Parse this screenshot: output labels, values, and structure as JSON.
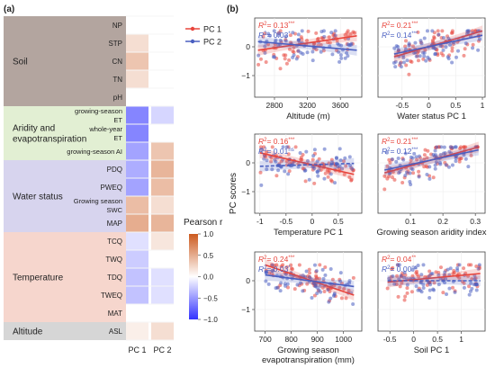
{
  "panel_labels": [
    "(a)",
    "(b)"
  ],
  "colors": {
    "pc1": "#e8453c",
    "pc2": "#4a5fc1",
    "neg": "#3333ff",
    "zero": "#ffffff",
    "pos": "#cc5a1e"
  },
  "chart_data": [
    {
      "type": "heatmap",
      "title": "",
      "columns": [
        "PC 1",
        "PC 2"
      ],
      "groups": [
        {
          "name": "Soil",
          "color": "#b3a59f",
          "rows": [
            "NP",
            "STP",
            "CN",
            "TN",
            "pH"
          ]
        },
        {
          "name": "Aridity and evapotranspiration",
          "name_lines": [
            "Aridity and",
            "evapotranspiration"
          ],
          "color": "#e2efd3",
          "rows": [
            "growing-season ET",
            "whole-year ET",
            "growing-season AI"
          ],
          "row_lines": [
            [
              "growing-season",
              "ET"
            ],
            [
              "whole-year",
              "ET"
            ],
            [
              "growing-season AI"
            ]
          ]
        },
        {
          "name": "Water status",
          "color": "#d7d4ee",
          "rows": [
            "PDQ",
            "PWEQ",
            "Growing season SWC",
            "MAP"
          ],
          "row_lines": [
            [
              "PDQ"
            ],
            [
              "PWEQ"
            ],
            [
              "Growing season",
              "SWC"
            ],
            [
              "MAP"
            ]
          ]
        },
        {
          "name": "Temperature",
          "color": "#f6d6cd",
          "rows": [
            "TCQ",
            "TWQ",
            "TDQ",
            "TWEQ",
            "MAT"
          ]
        },
        {
          "name": "Altitude",
          "color": "#d6d6d6",
          "rows": [
            "ASL"
          ]
        }
      ],
      "values": [
        [
          0.0,
          0.0
        ],
        [
          0.2,
          0.0
        ],
        [
          0.35,
          0.0
        ],
        [
          0.2,
          0.0
        ],
        [
          0.0,
          0.0
        ],
        [
          -0.6,
          -0.2
        ],
        [
          -0.6,
          0.0
        ],
        [
          -0.45,
          0.35
        ],
        [
          -0.4,
          0.45
        ],
        [
          -0.45,
          0.4
        ],
        [
          0.4,
          0.2
        ],
        [
          0.5,
          0.45
        ],
        [
          -0.15,
          0.15
        ],
        [
          -0.25,
          0.0
        ],
        [
          -0.3,
          -0.15
        ],
        [
          -0.3,
          -0.15
        ],
        [
          0.0,
          0.0
        ],
        [
          0.1,
          0.2
        ]
      ],
      "legend": {
        "title": "Pearson r",
        "ticks": [
          1.0,
          0.5,
          0.0,
          -0.5,
          -1.0
        ],
        "tick_labels": [
          "1.0",
          "0.5",
          "0.0",
          "−0.5",
          "−1.0"
        ],
        "range": [
          -1.0,
          1.0
        ]
      }
    },
    {
      "type": "scatter",
      "legend": [
        "PC 1",
        "PC 2"
      ],
      "ylabel": "PC scores",
      "panels": [
        {
          "xlabel": "Altitude (m)",
          "xlabel_lines": [
            "Altitude (m)"
          ],
          "xlim": [
            2560,
            3860
          ],
          "ylim": [
            -1.75,
            1.0
          ],
          "xticks": [
            2800,
            3200,
            3600
          ],
          "yticks": [
            -1,
            0
          ],
          "show_yticks": true,
          "r2": [
            {
              "R": "R",
              "val": "= 0.13",
              "sig": "***"
            },
            {
              "R": "R",
              "val": "= 0.03",
              "sig": "*"
            }
          ],
          "fit_pc1": [
            [
              2600,
              -0.12
            ],
            [
              3800,
              0.38
            ]
          ],
          "fit_pc2": [
            [
              2600,
              0.18
            ],
            [
              3800,
              -0.12
            ]
          ],
          "spread": 0.42,
          "n": 70,
          "seed": 3
        },
        {
          "xlabel": "Water status PC 1",
          "xlabel_lines": [
            "Water status PC 1"
          ],
          "xlim": [
            -0.95,
            1.05
          ],
          "ylim": [
            -1.75,
            1.0
          ],
          "xticks": [
            -0.5,
            0.0,
            0.5,
            1.0
          ],
          "yticks": [
            -1,
            0
          ],
          "show_yticks": false,
          "r2": [
            {
              "R": "R",
              "val": "= 0.21",
              "sig": "***"
            },
            {
              "R": "R",
              "val": "= 0.14",
              "sig": "***"
            }
          ],
          "fit_pc1": [
            [
              -0.65,
              -0.35
            ],
            [
              1.0,
              0.55
            ]
          ],
          "fit_pc2": [
            [
              -0.65,
              -0.25
            ],
            [
              1.0,
              0.4
            ]
          ],
          "spread": 0.4,
          "n": 70,
          "seed": 7
        },
        {
          "xlabel": "Temperature PC 1",
          "xlabel_lines": [
            "Temperature PC 1"
          ],
          "xlim": [
            -1.1,
            0.95
          ],
          "ylim": [
            -1.75,
            1.0
          ],
          "xticks": [
            -1.0,
            -0.5,
            0.0,
            0.5
          ],
          "yticks": [
            -1,
            0
          ],
          "show_yticks": true,
          "r2": [
            {
              "R": "R",
              "val": "= 0.16",
              "sig": "***"
            },
            {
              "R": "R",
              "val": "= 0.01",
              "sig": "ns"
            }
          ],
          "fit_pc1": [
            [
              -1.0,
              0.35
            ],
            [
              0.8,
              -0.4
            ]
          ],
          "fit_pc2": [
            [
              -1.0,
              -0.12
            ],
            [
              0.8,
              -0.02
            ]
          ],
          "spread": 0.42,
          "n": 70,
          "seed": 11
        },
        {
          "xlabel": "Growing season aridity index",
          "xlabel_lines": [
            "Growing season aridity index"
          ],
          "xlim": [
            0.0,
            0.33
          ],
          "ylim": [
            -1.75,
            1.0
          ],
          "xticks": [
            0.1,
            0.2,
            0.3
          ],
          "yticks": [
            -1,
            0
          ],
          "show_yticks": false,
          "r2": [
            {
              "R": "R",
              "val": "= 0.21",
              "sig": "***"
            },
            {
              "R": "R",
              "val": "= 0.12",
              "sig": "***"
            }
          ],
          "fit_pc1": [
            [
              0.02,
              -0.35
            ],
            [
              0.31,
              0.55
            ]
          ],
          "fit_pc2": [
            [
              0.02,
              -0.25
            ],
            [
              0.31,
              0.45
            ]
          ],
          "spread": 0.4,
          "n": 70,
          "seed": 19
        },
        {
          "xlabel": "Growing season evapotranspiration (mm)",
          "xlabel_lines": [
            "Growing season",
            "evapotranspiration (mm)"
          ],
          "xlim": [
            660,
            1070
          ],
          "ylim": [
            -1.75,
            1.0
          ],
          "xticks": [
            700,
            800,
            900,
            1000
          ],
          "yticks": [
            -1,
            0
          ],
          "show_yticks": true,
          "r2": [
            {
              "R": "R",
              "val": "= 0.24",
              "sig": "***"
            },
            {
              "R": "R",
              "val": "= 0.03",
              "sig": "*"
            }
          ],
          "fit_pc1": [
            [
              700,
              0.55
            ],
            [
              1040,
              -0.5
            ]
          ],
          "fit_pc2": [
            [
              700,
              0.2
            ],
            [
              1040,
              -0.2
            ]
          ],
          "spread": 0.42,
          "n": 70,
          "seed": 23
        },
        {
          "xlabel": "Soil PC 1",
          "xlabel_lines": [
            "Soil PC 1"
          ],
          "xlim": [
            -0.75,
            1.5
          ],
          "ylim": [
            -1.75,
            1.0
          ],
          "xticks": [
            -0.5,
            0.0,
            0.5,
            1.0
          ],
          "yticks": [
            -1,
            0
          ],
          "show_yticks": false,
          "r2": [
            {
              "R": "R",
              "val": "= 0.04",
              "sig": "**"
            },
            {
              "R": "R",
              "val": "= 0.00",
              "sig": "ns"
            }
          ],
          "fit_pc1": [
            [
              -0.55,
              -0.05
            ],
            [
              1.4,
              0.25
            ]
          ],
          "fit_pc2": [
            [
              -0.55,
              0.0
            ],
            [
              1.4,
              0.0
            ]
          ],
          "spread": 0.42,
          "n": 70,
          "seed": 31
        }
      ]
    }
  ]
}
